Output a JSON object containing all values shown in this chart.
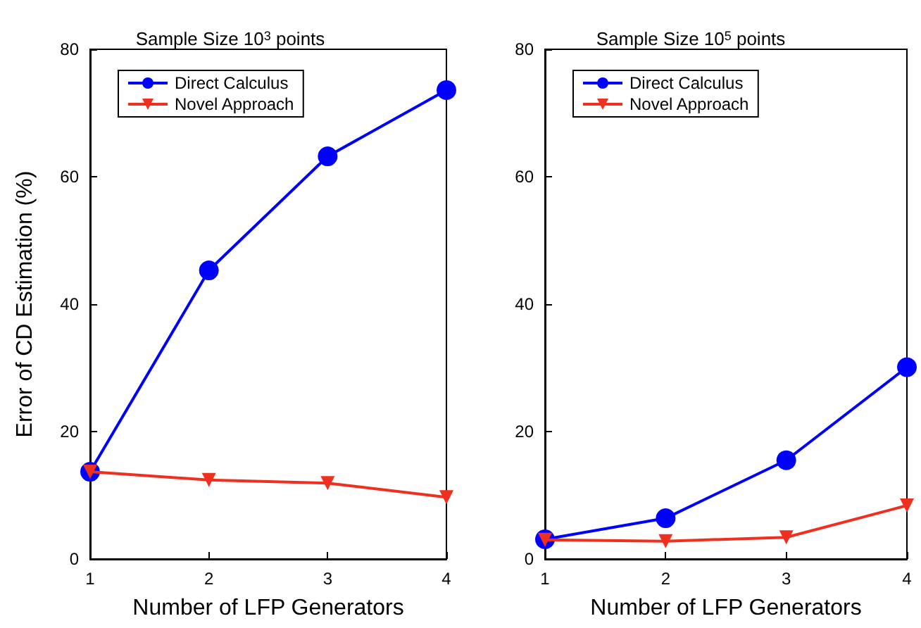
{
  "chart_data": [
    {
      "type": "line",
      "title": "Sample Size 10$^{3}$ points",
      "xlabel": "Number of LFP Generators",
      "ylabel": "Error of CD Estimation (%)",
      "x": [
        1,
        2,
        3,
        4
      ],
      "xlim": [
        1,
        4
      ],
      "xticks": [
        1,
        2,
        3,
        4
      ],
      "ylim": [
        0,
        80
      ],
      "yticks": [
        0,
        20,
        40,
        60,
        80
      ],
      "grid": false,
      "legend": "top",
      "series": [
        {
          "name": "Direct Calculus",
          "color": "#0000ff",
          "marker": "circle",
          "values": [
            13.7,
            45.3,
            63.2,
            73.6
          ]
        },
        {
          "name": "Novel Approach",
          "color": "#f0301e",
          "marker": "triangle",
          "values": [
            13.7,
            12.4,
            11.9,
            9.7
          ]
        }
      ]
    },
    {
      "type": "line",
      "title": "Sample Size 10$^{5}$ points",
      "xlabel": "Number of LFP Generators",
      "x": [
        1,
        2,
        3,
        4
      ],
      "xlim": [
        1,
        4
      ],
      "xticks": [
        1,
        2,
        3,
        4
      ],
      "ylim": [
        0,
        80
      ],
      "yticks": [
        0,
        20,
        40,
        60,
        80
      ],
      "grid": false,
      "legend": "top",
      "series": [
        {
          "name": "Direct Calculus",
          "color": "#0000ff",
          "marker": "circle",
          "values": [
            3.1,
            6.4,
            15.5,
            30.1
          ]
        },
        {
          "name": "Novel Approach",
          "color": "#f0301e",
          "marker": "triangle",
          "values": [
            3.0,
            2.8,
            3.4,
            8.4
          ]
        }
      ]
    }
  ]
}
